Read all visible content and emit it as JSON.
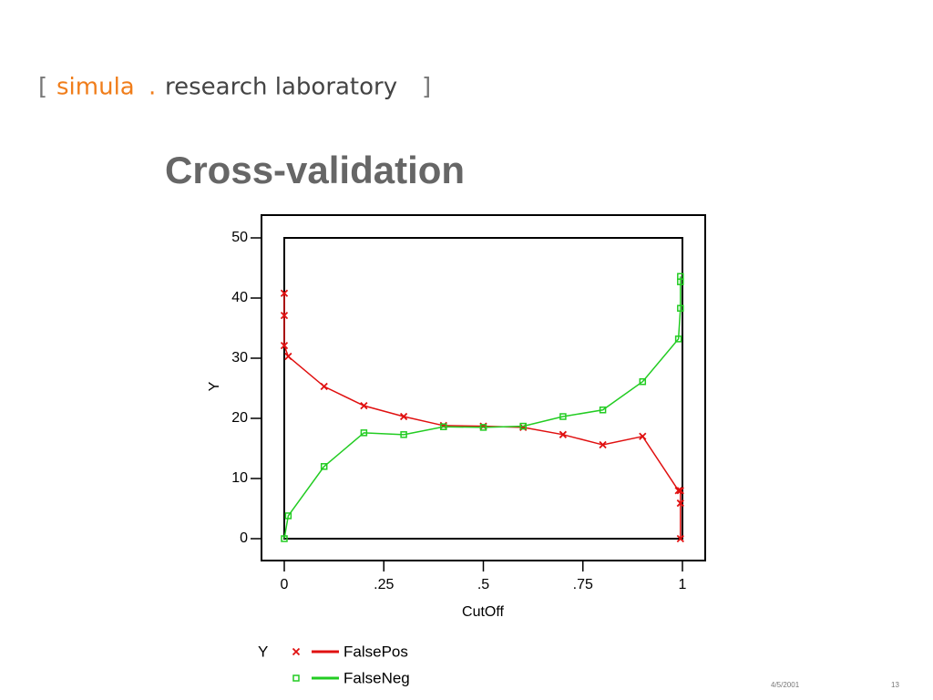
{
  "logo": {
    "open": "[",
    "name": "simula",
    "dot": ".",
    "rest": "research laboratory",
    "close": "]"
  },
  "footer": {
    "date": "4/5/2001",
    "page": "13"
  },
  "chart_data": {
    "type": "line",
    "title": "Cross-validation",
    "x_label": "CutOff",
    "y_label": "Y",
    "legend_title": "Y",
    "xlim": [
      0,
      1
    ],
    "ylim": [
      0,
      50
    ],
    "xticks": [
      0,
      {
        "value": 0.25,
        "label": ".25"
      },
      {
        "value": 0.5,
        "label": ".5"
      },
      {
        "value": 0.75,
        "label": ".75"
      },
      1
    ],
    "yticks": [
      0,
      10,
      20,
      30,
      40,
      50
    ],
    "series": [
      {
        "name": "FalsePos",
        "color": "#e01010",
        "marker": "x",
        "x": [
          0,
          0,
          0,
          0.01,
          0.1,
          0.2,
          0.3,
          0.4,
          0.5,
          0.6,
          0.7,
          0.8,
          0.9,
          0.99,
          0.995,
          0.995,
          0.995
        ],
        "values": [
          40.8,
          37.1,
          32.1,
          30.3,
          25.3,
          22.1,
          20.3,
          18.8,
          18.7,
          18.5,
          17.3,
          15.6,
          17.0,
          8.0,
          8.0,
          5.9,
          0
        ]
      },
      {
        "name": "FalseNeg",
        "color": "#22cc22",
        "marker": "square",
        "x": [
          0,
          0.01,
          0.1,
          0.2,
          0.3,
          0.4,
          0.5,
          0.6,
          0.7,
          0.8,
          0.9,
          0.99,
          0.995,
          0.995,
          0.995
        ],
        "values": [
          0,
          3.8,
          12.0,
          17.6,
          17.3,
          18.6,
          18.5,
          18.7,
          20.3,
          21.4,
          26.1,
          33.2,
          38.3,
          42.7,
          43.6
        ]
      }
    ]
  }
}
